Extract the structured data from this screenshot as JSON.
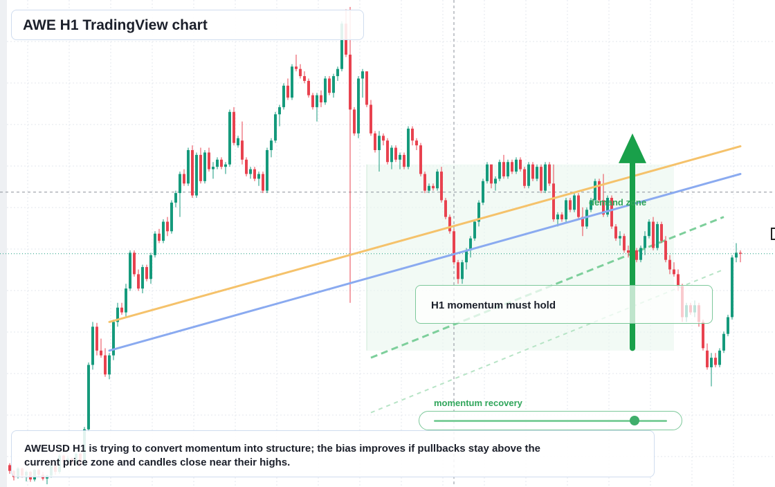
{
  "title": "AWE H1 TradingView chart",
  "annotations": {
    "hold_label": "H1 momentum must hold",
    "demand_label": "demand zone",
    "recovery_label": "momentum recovery",
    "note": "AWEUSD H1 is trying to convert momentum into structure; the bias improves if pullbacks stay above the current price zone and candles close near their highs."
  },
  "momentum_recovery": 0.86,
  "colors": {
    "up": "#159a7c",
    "down": "#e8424f",
    "orange_line": "#f5c26b",
    "blue_line": "#8aaaf0",
    "green": "#2fa55a",
    "zone": "#eaf7ee"
  },
  "chart_data": {
    "type": "candlestick",
    "symbol": "AWEUSD",
    "timeframe": "H1",
    "grid": true,
    "price_range": [
      0,
      100
    ],
    "current_price": 48.3,
    "crosshair": {
      "bar": 107,
      "price": 61.2
    },
    "candles": [
      [
        4.0,
        4.4,
        2.2,
        2.8
      ],
      [
        2.8,
        3.0,
        0.8,
        1.5
      ],
      [
        1.5,
        3.6,
        1.2,
        3.3
      ],
      [
        3.3,
        3.5,
        1.4,
        1.8
      ],
      [
        1.8,
        2.9,
        0.6,
        2.6
      ],
      [
        2.6,
        2.8,
        0.5,
        1.0
      ],
      [
        1.0,
        3.2,
        0.6,
        3.0
      ],
      [
        3.0,
        3.2,
        1.6,
        2.0
      ],
      [
        2.0,
        2.6,
        0.8,
        1.2
      ],
      [
        1.2,
        2.0,
        0.0,
        1.8
      ],
      [
        1.8,
        4.2,
        1.4,
        3.9
      ],
      [
        3.9,
        4.1,
        2.0,
        2.6
      ],
      [
        2.6,
        6.4,
        2.2,
        6.0
      ],
      [
        6.0,
        6.2,
        4.1,
        4.6
      ],
      [
        4.6,
        6.0,
        3.8,
        5.4
      ],
      [
        5.4,
        5.6,
        3.8,
        4.4
      ],
      [
        4.4,
        6.6,
        4.0,
        6.4
      ],
      [
        6.4,
        6.6,
        3.6,
        4.0
      ],
      [
        4.0,
        12.0,
        3.6,
        11.5
      ],
      [
        11.5,
        25.5,
        11.0,
        25.0
      ],
      [
        25.0,
        34.0,
        24.0,
        33.0
      ],
      [
        33.0,
        33.8,
        27.0,
        28.0
      ],
      [
        28.0,
        30.5,
        26.5,
        27.0
      ],
      [
        27.0,
        28.5,
        22.5,
        23.0
      ],
      [
        23.0,
        27.5,
        22.0,
        27.0
      ],
      [
        27.0,
        34.5,
        26.0,
        34.0
      ],
      [
        34.0,
        38.0,
        33.0,
        37.0
      ],
      [
        37.0,
        38.0,
        35.5,
        36.0
      ],
      [
        36.0,
        42.0,
        35.0,
        41.0
      ],
      [
        41.0,
        49.0,
        40.5,
        48.5
      ],
      [
        48.5,
        49.0,
        43.5,
        44.0
      ],
      [
        44.0,
        45.0,
        40.5,
        41.0
      ],
      [
        41.0,
        46.0,
        40.0,
        45.5
      ],
      [
        45.5,
        46.0,
        42.5,
        43.0
      ],
      [
        43.0,
        48.5,
        42.0,
        48.0
      ],
      [
        48.0,
        53.0,
        47.5,
        52.5
      ],
      [
        52.5,
        53.5,
        50.5,
        51.0
      ],
      [
        51.0,
        55.5,
        50.5,
        55.0
      ],
      [
        55.0,
        56.0,
        52.0,
        53.0
      ],
      [
        53.0,
        59.5,
        52.5,
        59.0
      ],
      [
        59.0,
        61.5,
        58.0,
        61.0
      ],
      [
        61.0,
        65.5,
        56.0,
        65.0
      ],
      [
        65.0,
        66.0,
        62.5,
        63.0
      ],
      [
        63.0,
        70.5,
        62.5,
        70.0
      ],
      [
        70.0,
        71.0,
        60.0,
        60.5
      ],
      [
        60.5,
        69.5,
        60.0,
        69.0
      ],
      [
        69.0,
        70.5,
        63.0,
        63.5
      ],
      [
        63.5,
        70.0,
        63.0,
        69.5
      ],
      [
        69.5,
        70.5,
        65.5,
        66.0
      ],
      [
        66.0,
        67.5,
        64.0,
        66.5
      ],
      [
        66.5,
        68.5,
        66.0,
        68.0
      ],
      [
        68.0,
        68.5,
        66.0,
        66.5
      ],
      [
        66.5,
        67.5,
        65.0,
        67.0
      ],
      [
        67.0,
        78.5,
        66.5,
        78.0
      ],
      [
        78.0,
        79.0,
        71.0,
        71.5
      ],
      [
        71.0,
        73.0,
        70.5,
        72.5
      ],
      [
        72.0,
        76.0,
        67.0,
        68.0
      ],
      [
        68.0,
        68.5,
        64.5,
        65.0
      ],
      [
        65.0,
        66.5,
        64.0,
        66.0
      ],
      [
        66.0,
        66.5,
        63.5,
        64.0
      ],
      [
        64.0,
        65.5,
        62.5,
        65.0
      ],
      [
        65.0,
        65.5,
        61.0,
        61.5
      ],
      [
        61.5,
        70.5,
        61.0,
        70.0
      ],
      [
        70.0,
        72.5,
        68.5,
        72.0
      ],
      [
        72.0,
        78.0,
        71.5,
        77.5
      ],
      [
        77.5,
        79.5,
        75.0,
        79.0
      ],
      [
        79.0,
        84.0,
        78.5,
        83.5
      ],
      [
        83.5,
        85.0,
        80.5,
        81.0
      ],
      [
        81.0,
        88.0,
        80.5,
        87.5
      ],
      [
        87.5,
        90.0,
        86.5,
        87.0
      ],
      [
        87.0,
        88.0,
        85.0,
        85.5
      ],
      [
        85.5,
        86.5,
        84.0,
        84.5
      ],
      [
        84.5,
        85.0,
        81.0,
        81.5
      ],
      [
        81.5,
        82.0,
        78.5,
        79.0
      ],
      [
        79.0,
        82.0,
        76.0,
        81.5
      ],
      [
        81.5,
        82.5,
        79.0,
        80.0
      ],
      [
        80.0,
        85.5,
        79.5,
        85.0
      ],
      [
        85.0,
        85.5,
        81.5,
        82.0
      ],
      [
        82.0,
        86.0,
        81.0,
        85.5
      ],
      [
        85.5,
        87.5,
        84.5,
        87.0
      ],
      [
        87.0,
        97.0,
        86.5,
        96.5
      ],
      [
        96.5,
        99.5,
        89.5,
        90.0
      ],
      [
        90.0,
        100.0,
        38.0,
        78.5
      ],
      [
        78.5,
        79.0,
        73.0,
        73.5
      ],
      [
        73.5,
        85.5,
        72.5,
        85.0
      ],
      [
        85.0,
        87.0,
        81.0,
        86.5
      ],
      [
        86.5,
        86.5,
        79.0,
        79.5
      ],
      [
        79.5,
        80.5,
        73.0,
        73.5
      ],
      [
        73.5,
        74.0,
        69.5,
        70.0
      ],
      [
        70.0,
        74.0,
        65.5,
        73.0
      ],
      [
        73.0,
        73.5,
        71.0,
        72.0
      ],
      [
        72.0,
        72.5,
        67.0,
        67.5
      ],
      [
        67.5,
        71.0,
        66.0,
        70.5
      ],
      [
        70.5,
        71.0,
        67.5,
        68.0
      ],
      [
        68.0,
        69.5,
        66.0,
        69.0
      ],
      [
        69.0,
        69.5,
        66.0,
        66.5
      ],
      [
        66.5,
        75.0,
        66.0,
        74.5
      ],
      [
        74.5,
        75.0,
        71.0,
        72.0
      ],
      [
        72.0,
        72.5,
        70.0,
        71.0
      ],
      [
        71.0,
        71.5,
        64.5,
        65.0
      ],
      [
        65.0,
        65.5,
        61.0,
        61.5
      ],
      [
        61.5,
        63.0,
        61.0,
        62.5
      ],
      [
        62.5,
        63.0,
        61.5,
        62.0
      ],
      [
        62.0,
        66.0,
        61.5,
        65.5
      ],
      [
        65.5,
        66.5,
        59.0,
        59.5
      ],
      [
        59.5,
        60.0,
        55.5,
        56.0
      ],
      [
        56.0,
        56.5,
        52.5,
        53.0
      ],
      [
        53.0,
        53.5,
        46.0,
        46.5
      ],
      [
        46.5,
        47.0,
        42.0,
        43.0
      ],
      [
        43.0,
        47.0,
        42.0,
        46.5
      ],
      [
        46.5,
        49.5,
        45.0,
        49.0
      ],
      [
        49.0,
        52.0,
        47.5,
        51.5
      ],
      [
        51.5,
        55.5,
        51.0,
        55.0
      ],
      [
        55.0,
        59.5,
        54.0,
        59.0
      ],
      [
        59.0,
        64.0,
        58.5,
        63.5
      ],
      [
        63.5,
        67.5,
        63.0,
        67.0
      ],
      [
        67.0,
        66.0,
        62.0,
        63.0
      ],
      [
        63.0,
        64.5,
        61.5,
        64.0
      ],
      [
        64.0,
        68.0,
        63.5,
        67.5
      ],
      [
        67.5,
        69.0,
        64.0,
        64.5
      ],
      [
        64.5,
        68.0,
        64.0,
        67.5
      ],
      [
        67.5,
        68.0,
        65.0,
        65.5
      ],
      [
        65.5,
        68.5,
        65.0,
        68.0
      ],
      [
        68.0,
        68.5,
        65.5,
        66.0
      ],
      [
        66.0,
        66.5,
        62.0,
        62.5
      ],
      [
        62.5,
        67.5,
        62.0,
        67.0
      ],
      [
        67.0,
        67.5,
        63.5,
        64.0
      ],
      [
        64.0,
        67.0,
        63.5,
        66.5
      ],
      [
        66.5,
        67.0,
        61.0,
        61.5
      ],
      [
        61.5,
        67.5,
        61.0,
        67.0
      ],
      [
        67.0,
        67.5,
        62.5,
        63.0
      ],
      [
        63.0,
        67.0,
        55.0,
        55.5
      ],
      [
        55.5,
        57.0,
        54.0,
        56.5
      ],
      [
        56.5,
        57.0,
        55.0,
        55.5
      ],
      [
        55.5,
        60.0,
        55.0,
        59.5
      ],
      [
        59.5,
        60.0,
        57.0,
        57.5
      ],
      [
        57.5,
        61.0,
        57.0,
        60.5
      ],
      [
        60.5,
        61.0,
        55.5,
        56.0
      ],
      [
        56.0,
        58.0,
        52.0,
        54.0
      ],
      [
        54.0,
        58.0,
        53.5,
        57.5
      ],
      [
        57.5,
        60.0,
        57.0,
        59.5
      ],
      [
        59.5,
        64.0,
        59.0,
        63.5
      ],
      [
        63.5,
        64.0,
        59.0,
        59.5
      ],
      [
        59.5,
        65.0,
        56.0,
        56.5
      ],
      [
        56.5,
        60.5,
        56.0,
        60.0
      ],
      [
        60.0,
        60.5,
        53.5,
        54.0
      ],
      [
        54.0,
        54.5,
        51.0,
        51.5
      ],
      [
        51.5,
        53.0,
        50.0,
        52.0
      ],
      [
        52.0,
        52.5,
        48.5,
        49.0
      ],
      [
        49.0,
        50.0,
        47.5,
        48.5
      ],
      [
        48.5,
        51.5,
        47.5,
        49.0
      ],
      [
        49.0,
        49.5,
        46.5,
        47.0
      ],
      [
        47.0,
        50.0,
        46.5,
        49.5
      ],
      [
        49.5,
        53.0,
        48.0,
        52.0
      ],
      [
        52.0,
        55.5,
        51.5,
        55.0
      ],
      [
        55.0,
        56.0,
        49.0,
        49.5
      ],
      [
        49.5,
        55.0,
        49.0,
        54.5
      ],
      [
        54.5,
        55.0,
        50.5,
        51.0
      ],
      [
        51.0,
        52.0,
        46.5,
        47.0
      ],
      [
        47.0,
        48.0,
        44.0,
        45.0
      ],
      [
        45.0,
        46.5,
        43.5,
        44.0
      ],
      [
        44.0,
        45.0,
        40.5,
        41.5
      ],
      [
        41.5,
        42.0,
        34.0,
        35.0
      ],
      [
        35.0,
        38.0,
        34.0,
        37.5
      ],
      [
        37.5,
        38.0,
        35.5,
        36.0
      ],
      [
        36.0,
        38.5,
        35.0,
        37.5
      ],
      [
        37.5,
        38.0,
        33.0,
        34.0
      ],
      [
        34.0,
        34.5,
        28.0,
        28.5
      ],
      [
        28.0,
        29.5,
        24.0,
        24.5
      ],
      [
        24.5,
        27.5,
        20.5,
        26.5
      ],
      [
        26.5,
        27.5,
        24.5,
        25.0
      ],
      [
        25.0,
        28.5,
        24.5,
        28.0
      ],
      [
        28.0,
        32.0,
        27.5,
        31.5
      ],
      [
        31.5,
        35.5,
        31.0,
        35.0
      ],
      [
        35.0,
        48.0,
        34.5,
        47.5
      ],
      [
        47.5,
        50.5,
        46.5,
        48.5
      ],
      [
        48.5,
        49.0,
        46.5,
        48.3
      ]
    ],
    "trendlines": [
      {
        "name": "orange",
        "from": [
          24,
          34.0
        ],
        "to": [
          176,
          70.8
        ]
      },
      {
        "name": "blue",
        "from": [
          24,
          28.0
        ],
        "to": [
          176,
          65.0
        ]
      }
    ],
    "demand_zone": {
      "bar_from": 86,
      "bar_to": 160,
      "price_from": 28,
      "price_to": 67
    },
    "target_arrow": {
      "bar": 150,
      "price_from": 28.5,
      "price_to": 73.5
    }
  }
}
